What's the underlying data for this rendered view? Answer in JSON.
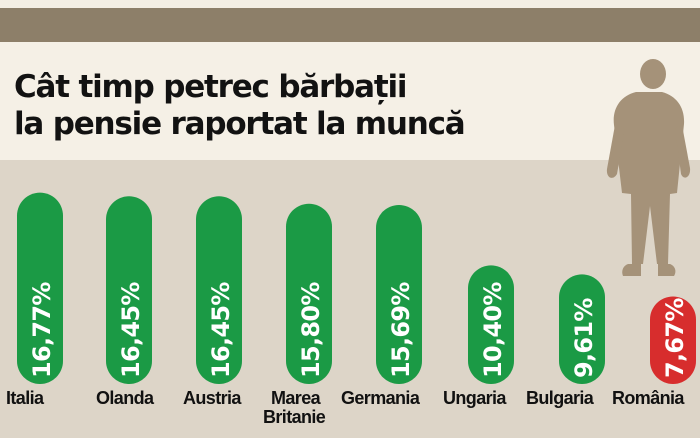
{
  "chart_data": {
    "type": "bar",
    "title": "Cât timp petrec bărbații\nla pensie raportat la muncă",
    "categories": [
      "Italia",
      "Olanda",
      "Austria",
      "Marea Britanie",
      "Germania",
      "Ungaria",
      "Bulgaria",
      "România"
    ],
    "values": [
      16.77,
      16.45,
      16.45,
      15.8,
      15.69,
      10.4,
      9.61,
      7.67
    ],
    "value_labels": [
      "16,77%",
      "16,45%",
      "16,45%",
      "15,80%",
      "15,69%",
      "10,40%",
      "9,61%",
      "7,67%"
    ],
    "bar_colors": [
      "#1b9a45",
      "#1b9a45",
      "#1b9a45",
      "#1b9a45",
      "#1b9a45",
      "#1b9a45",
      "#1b9a45",
      "#d72d2d"
    ],
    "ylim": [
      0,
      17
    ],
    "grid": false,
    "legend": "none"
  }
}
